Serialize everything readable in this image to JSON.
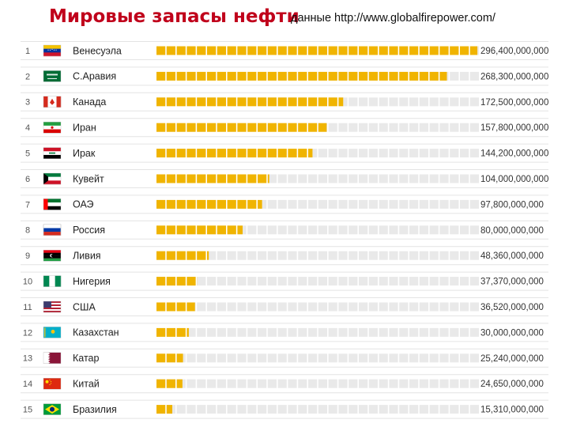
{
  "header": {
    "title": "Мировые запасы нефти",
    "subtitle": "данные http://www.globalfirepower.com/"
  },
  "colors": {
    "bar_filled": "#f0b400",
    "bar_empty": "#e9e9e9",
    "row_separator": "#e4e4e4",
    "title": "#c0001b"
  },
  "chart_data": {
    "type": "bar",
    "orientation": "horizontal",
    "title": "Мировые запасы нефти",
    "subtitle": "данные http://www.globalfirepower.com/",
    "xlim": [
      0,
      298000000000
    ],
    "grid": false,
    "categories": [
      "Венесуэла",
      "С.Аравия",
      "Канада",
      "Иран",
      "Ирак",
      "Кувейт",
      "ОАЭ",
      "Россия",
      "Ливия",
      "Нигерия",
      "США",
      "Казахстан",
      "Катар",
      "Китай",
      "Бразилия"
    ],
    "ranks": [
      "1",
      "2",
      "3",
      "4",
      "5",
      "6",
      "7",
      "8",
      "9",
      "10",
      "11",
      "12",
      "13",
      "14",
      "15"
    ],
    "values": [
      296400000000,
      268300000000,
      172500000000,
      157800000000,
      144200000000,
      104000000000,
      97800000000,
      80000000000,
      48360000000,
      37370000000,
      36520000000,
      30000000000,
      25240000000,
      24650000000,
      15310000000
    ],
    "value_labels": [
      "296,400,000,000",
      "268,300,000,000",
      "172,500,000,000",
      "157,800,000,000",
      "144,200,000,000",
      "104,000,000,000",
      "97,800,000,000",
      "80,000,000,000",
      "48,360,000,000",
      "37,370,000,000",
      "36,520,000,000",
      "30,000,000,000",
      "25,240,000,000",
      "24,650,000,000",
      "15,310,000,000"
    ],
    "flags": [
      "venezuela-flag-icon",
      "saudi-arabia-flag-icon",
      "canada-flag-icon",
      "iran-flag-icon",
      "iraq-flag-icon",
      "kuwait-flag-icon",
      "uae-flag-icon",
      "russia-flag-icon",
      "libya-flag-icon",
      "nigeria-flag-icon",
      "usa-flag-icon",
      "kazakhstan-flag-icon",
      "qatar-flag-icon",
      "china-flag-icon",
      "brazil-flag-icon"
    ]
  }
}
